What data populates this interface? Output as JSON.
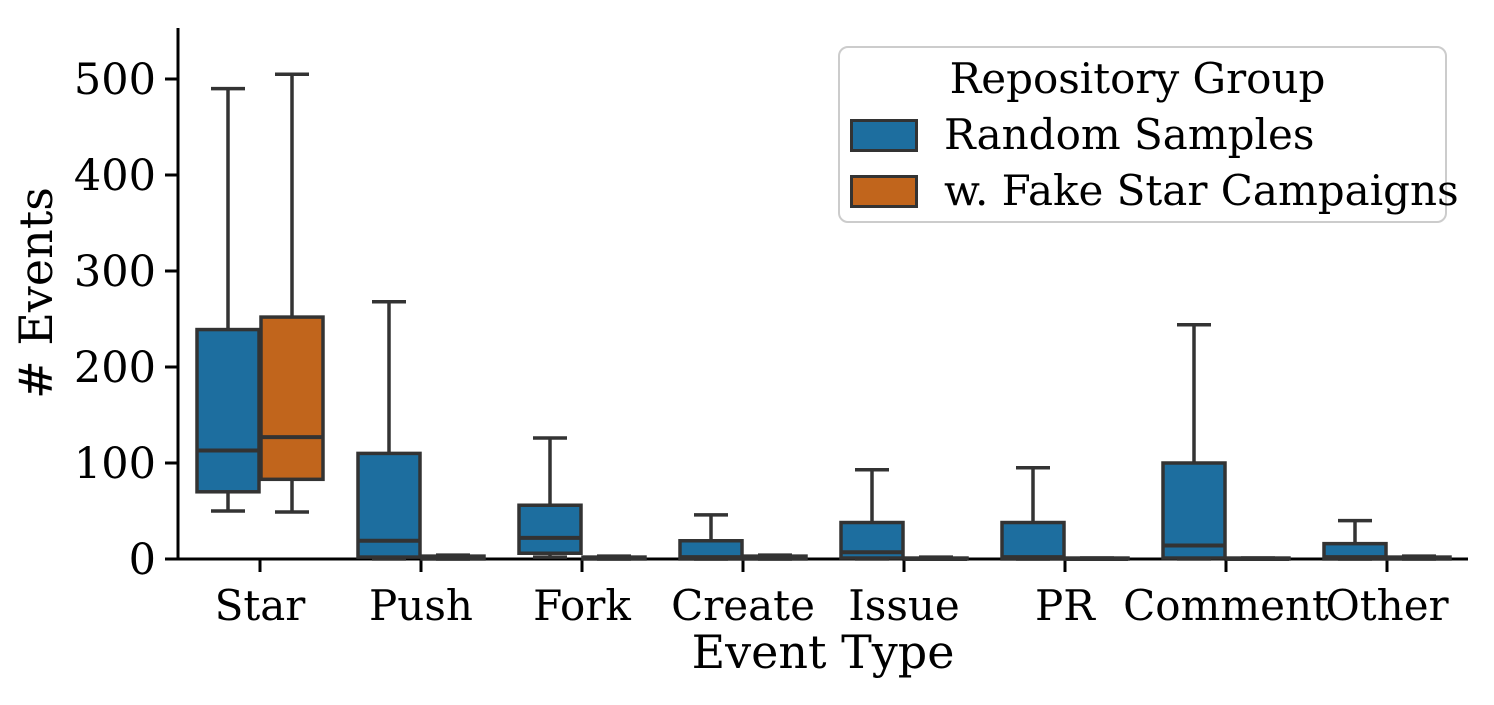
{
  "chart_data": {
    "type": "grouped_boxplot",
    "xlabel": "Event Type",
    "ylabel": "# Events",
    "categories": [
      "Star",
      "Push",
      "Fork",
      "Create",
      "Issue",
      "PR",
      "Comment",
      "Other"
    ],
    "y_ticks": [
      0,
      100,
      200,
      300,
      400,
      500
    ],
    "ylim": [
      0,
      553
    ],
    "grid": false,
    "show_fliers": false,
    "edge_color": "#333333",
    "axis_color": "#000000",
    "background_color": "#ffffff",
    "legend": {
      "title": "Repository Group",
      "position": "upper right",
      "border_color": "#cccccc",
      "entries": [
        {
          "label": "Random Samples",
          "color": "#1d6e9f"
        },
        {
          "label": "w. Fake Star Campaigns",
          "color": "#c1651c"
        }
      ]
    },
    "series": [
      {
        "name": "Random Samples",
        "color": "#1d6e9f",
        "boxes": [
          {
            "category": "Star",
            "whisker_low": 50,
            "q1": 70,
            "median": 113,
            "q3": 239,
            "whisker_high": 490
          },
          {
            "category": "Push",
            "whisker_low": 0,
            "q1": 2,
            "median": 19,
            "q3": 110,
            "whisker_high": 268
          },
          {
            "category": "Fork",
            "whisker_low": 2,
            "q1": 6,
            "median": 22,
            "q3": 56,
            "whisker_high": 126
          },
          {
            "category": "Create",
            "whisker_low": 0,
            "q1": 0,
            "median": 2,
            "q3": 19,
            "whisker_high": 46
          },
          {
            "category": "Issue",
            "whisker_low": 0,
            "q1": 1,
            "median": 7,
            "q3": 38,
            "whisker_high": 93
          },
          {
            "category": "PR",
            "whisker_low": 0,
            "q1": 0,
            "median": 2,
            "q3": 38,
            "whisker_high": 95
          },
          {
            "category": "Comment",
            "whisker_low": 0,
            "q1": 1,
            "median": 14,
            "q3": 100,
            "whisker_high": 244
          },
          {
            "category": "Other",
            "whisker_low": 0,
            "q1": 0,
            "median": 2,
            "q3": 16,
            "whisker_high": 40
          }
        ]
      },
      {
        "name": "w. Fake Star Campaigns",
        "color": "#c1651c",
        "boxes": [
          {
            "category": "Star",
            "whisker_low": 49,
            "q1": 83,
            "median": 127,
            "q3": 252,
            "whisker_high": 505
          },
          {
            "category": "Push",
            "whisker_low": 0,
            "q1": 0,
            "median": 1,
            "q3": 3,
            "whisker_high": 4
          },
          {
            "category": "Fork",
            "whisker_low": 0,
            "q1": 0,
            "median": 1,
            "q3": 2,
            "whisker_high": 3
          },
          {
            "category": "Create",
            "whisker_low": 0,
            "q1": 0,
            "median": 1,
            "q3": 3,
            "whisker_high": 4
          },
          {
            "category": "Issue",
            "whisker_low": 0,
            "q1": 0,
            "median": 0,
            "q3": 1,
            "whisker_high": 2
          },
          {
            "category": "PR",
            "whisker_low": 0,
            "q1": 0,
            "median": 0,
            "q3": 1,
            "whisker_high": 1
          },
          {
            "category": "Comment",
            "whisker_low": 0,
            "q1": 0,
            "median": 0,
            "q3": 1,
            "whisker_high": 1
          },
          {
            "category": "Other",
            "whisker_low": 0,
            "q1": 0,
            "median": 1,
            "q3": 2,
            "whisker_high": 3
          }
        ]
      }
    ]
  }
}
